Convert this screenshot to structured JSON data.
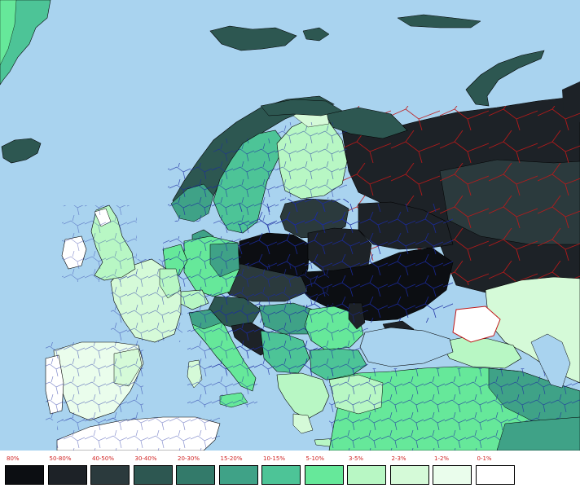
{
  "colors": {
    "sea": "#a9d3ef",
    "land_unmapped": "#e8f0e8",
    "border_region": "#1a2aa0",
    "border_country": "#c01818",
    "border_outer": "#000000"
  },
  "legend": {
    "label_color": "#d02020",
    "items": [
      {
        "label": "80%",
        "color": "#0c0e12"
      },
      {
        "label": "50-80%",
        "color": "#1d2227"
      },
      {
        "label": "40-50%",
        "color": "#2b3a3d"
      },
      {
        "label": "30-40%",
        "color": "#2d5751"
      },
      {
        "label": "20-30%",
        "color": "#337a6a"
      },
      {
        "label": "15-20%",
        "color": "#3fa287"
      },
      {
        "label": "10-15%",
        "color": "#4dc497"
      },
      {
        "label": "5-10%",
        "color": "#66e89a"
      },
      {
        "label": "3-5%",
        "color": "#b8f7c4"
      },
      {
        "label": "2-3%",
        "color": "#d5fad8"
      },
      {
        "label": "1-2%",
        "color": "#eafdec"
      },
      {
        "label": "0-1%",
        "color": "#ffffff"
      }
    ]
  }
}
